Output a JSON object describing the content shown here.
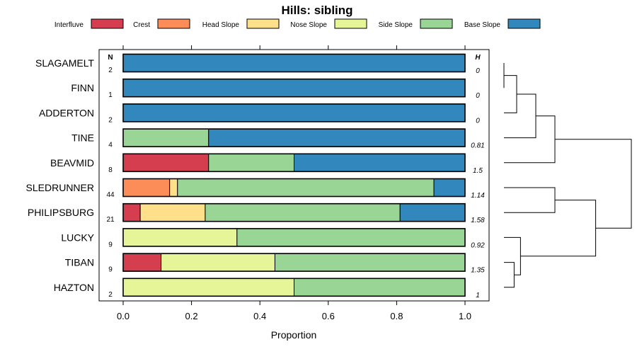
{
  "chart_data": {
    "type": "bar",
    "orientation": "horizontal",
    "stacked": true,
    "title": "Hills: sibling",
    "xlabel": "Proportion",
    "xlim": [
      0,
      1
    ],
    "x_ticks": [
      "0.0",
      "0.2",
      "0.4",
      "0.6",
      "0.8",
      "1.0"
    ],
    "n_header": "N",
    "h_header": "H",
    "categories": [
      "SLAGAMELT",
      "FINN",
      "ADDERTON",
      "TINE",
      "BEAVMID",
      "SLEDRUNNER",
      "PHILIPSBURG",
      "LUCKY",
      "TIBAN",
      "HAZTON"
    ],
    "n_values": [
      "2",
      "1",
      "2",
      "4",
      "8",
      "44",
      "21",
      "9",
      "9",
      "2"
    ],
    "h_values": [
      "0",
      "0",
      "0",
      "0.81",
      "1.5",
      "1.14",
      "1.58",
      "0.92",
      "1.35",
      "1"
    ],
    "series": [
      {
        "name": "Interfluve",
        "color": "#D53E4F",
        "values": [
          0,
          0,
          0,
          0,
          0.25,
          0,
          0.05,
          0,
          0.111,
          0
        ]
      },
      {
        "name": "Crest",
        "color": "#FC8D59",
        "values": [
          0,
          0,
          0,
          0,
          0,
          0.136,
          0,
          0,
          0,
          0
        ]
      },
      {
        "name": "Head Slope",
        "color": "#FEE08B",
        "values": [
          0,
          0,
          0,
          0,
          0,
          0.023,
          0.19,
          0,
          0,
          0
        ]
      },
      {
        "name": "Nose Slope",
        "color": "#E6F598",
        "values": [
          0,
          0,
          0,
          0,
          0,
          0,
          0,
          0.333,
          0.333,
          0.5
        ]
      },
      {
        "name": "Side Slope",
        "color": "#99D594",
        "values": [
          0,
          0,
          0,
          0.25,
          0.25,
          0.75,
          0.57,
          0.667,
          0.556,
          0.5
        ]
      },
      {
        "name": "Base Slope",
        "color": "#3288BD",
        "values": [
          1,
          1,
          1,
          0.75,
          0.5,
          0.091,
          0.19,
          0,
          0,
          0
        ]
      }
    ],
    "dendrogram": {
      "merges": [
        [
          0,
          1,
          0.0
        ],
        [
          -1,
          2,
          0.1
        ],
        [
          -2,
          3,
          0.25
        ],
        [
          -3,
          4,
          0.4
        ],
        [
          5,
          6,
          0.4
        ],
        [
          8,
          9,
          0.08
        ],
        [
          7,
          -6,
          0.13
        ],
        [
          -5,
          -7,
          0.72
        ],
        [
          -4,
          -8,
          1.0
        ]
      ]
    }
  }
}
